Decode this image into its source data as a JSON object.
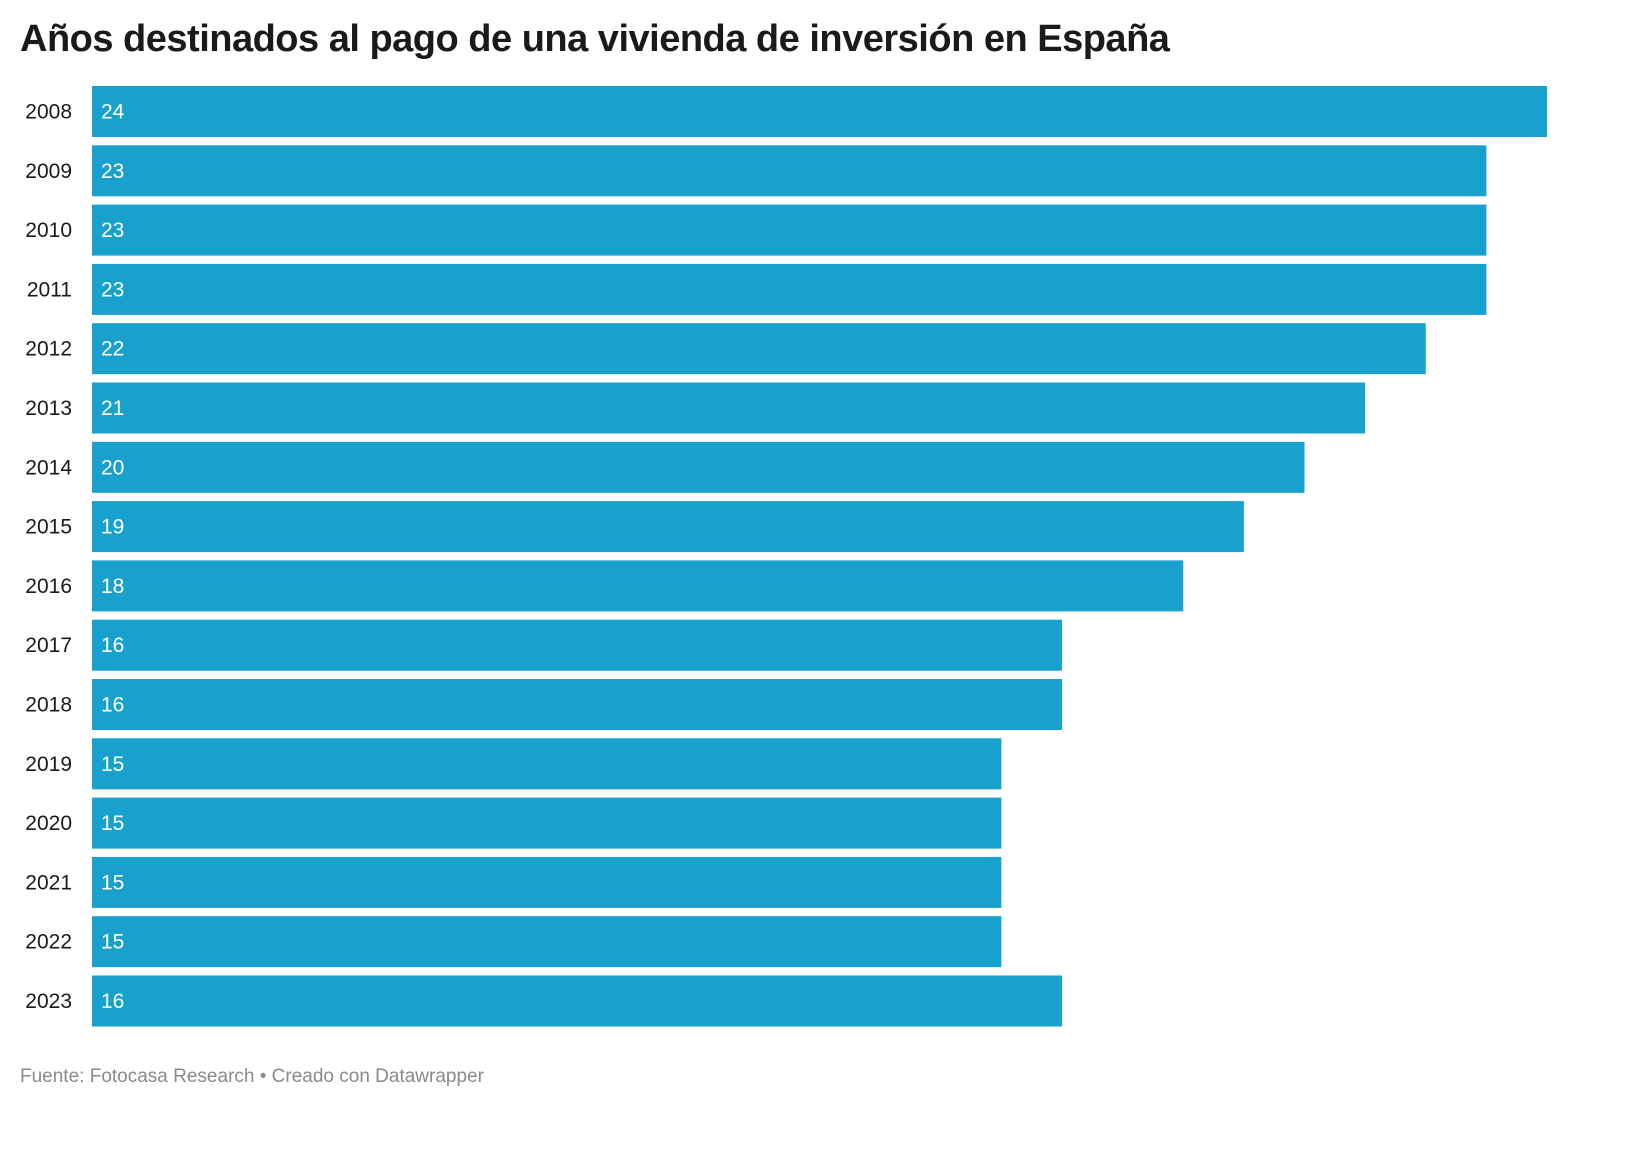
{
  "chart_data": {
    "type": "bar",
    "orientation": "horizontal",
    "title": "Años destinados al pago de una vivienda de inversión en España",
    "categories": [
      "2008",
      "2009",
      "2010",
      "2011",
      "2012",
      "2013",
      "2014",
      "2015",
      "2016",
      "2017",
      "2018",
      "2019",
      "2020",
      "2021",
      "2022",
      "2023"
    ],
    "values": [
      24,
      23,
      23,
      23,
      22,
      21,
      20,
      19,
      18,
      16,
      16,
      15,
      15,
      15,
      15,
      16
    ],
    "xlim": [
      0,
      24
    ],
    "grid": false,
    "data_labels": "inside-left",
    "bar_color": "#18a1cd",
    "label_color": "#ffffff"
  },
  "footer": "Fuente: Fotocasa Research • Creado con Datawrapper"
}
